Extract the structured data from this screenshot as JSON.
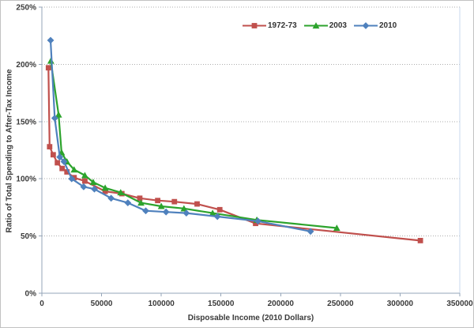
{
  "chart_data": {
    "type": "line",
    "title": "",
    "xlabel": "Disposable Income (2010 Dollars)",
    "ylabel": "Ratio of Total Spending to After-Tax Income",
    "xlim": [
      0,
      350000
    ],
    "ylim": [
      0,
      250
    ],
    "x_ticks": [
      0,
      50000,
      100000,
      150000,
      200000,
      250000,
      300000,
      350000
    ],
    "x_tick_labels": [
      "0",
      "50000",
      "100000",
      "150000",
      "200000",
      "250000",
      "300000",
      "350000"
    ],
    "y_ticks": [
      0,
      50,
      100,
      150,
      200,
      250
    ],
    "y_tick_labels": [
      "0%",
      "50%",
      "100%",
      "150%",
      "200%",
      "250%"
    ],
    "grid": "horizontal-dotted",
    "legend_position": "top-center",
    "series": [
      {
        "name": "1972-73",
        "color": "#C0504D",
        "marker": "square",
        "points": [
          [
            5500,
            197
          ],
          [
            6500,
            128
          ],
          [
            9500,
            121
          ],
          [
            13000,
            114
          ],
          [
            17000,
            109
          ],
          [
            21000,
            106
          ],
          [
            27000,
            101
          ],
          [
            36000,
            98
          ],
          [
            53000,
            89
          ],
          [
            67000,
            87
          ],
          [
            82000,
            83
          ],
          [
            97000,
            81
          ],
          [
            111000,
            80
          ],
          [
            130000,
            78
          ],
          [
            149000,
            73
          ],
          [
            179000,
            61
          ],
          [
            317000,
            46
          ]
        ]
      },
      {
        "name": "2003",
        "color": "#2CA32C",
        "marker": "triangle",
        "points": [
          [
            7500,
            203
          ],
          [
            14000,
            156
          ],
          [
            16500,
            123
          ],
          [
            21000,
            115
          ],
          [
            27000,
            108
          ],
          [
            36000,
            103
          ],
          [
            43000,
            97
          ],
          [
            53000,
            92
          ],
          [
            66000,
            88
          ],
          [
            83000,
            79
          ],
          [
            100000,
            76
          ],
          [
            119000,
            74
          ],
          [
            143000,
            70
          ],
          [
            180000,
            64
          ],
          [
            247000,
            57
          ]
        ]
      },
      {
        "name": "2010",
        "color": "#4F81BD",
        "marker": "diamond",
        "points": [
          [
            7300,
            221
          ],
          [
            10800,
            153
          ],
          [
            15000,
            119
          ],
          [
            18500,
            115
          ],
          [
            25000,
            100
          ],
          [
            35000,
            93
          ],
          [
            44000,
            91
          ],
          [
            58000,
            83
          ],
          [
            72000,
            79
          ],
          [
            87000,
            72
          ],
          [
            104000,
            71
          ],
          [
            121000,
            70
          ],
          [
            147000,
            67
          ],
          [
            181000,
            63
          ],
          [
            225000,
            54
          ]
        ]
      }
    ],
    "colors": {
      "grid": "#ADADAD",
      "axis": "#95A5B8",
      "plot_right_border": "#C9D9EC",
      "text": "#3A3A3A"
    }
  }
}
